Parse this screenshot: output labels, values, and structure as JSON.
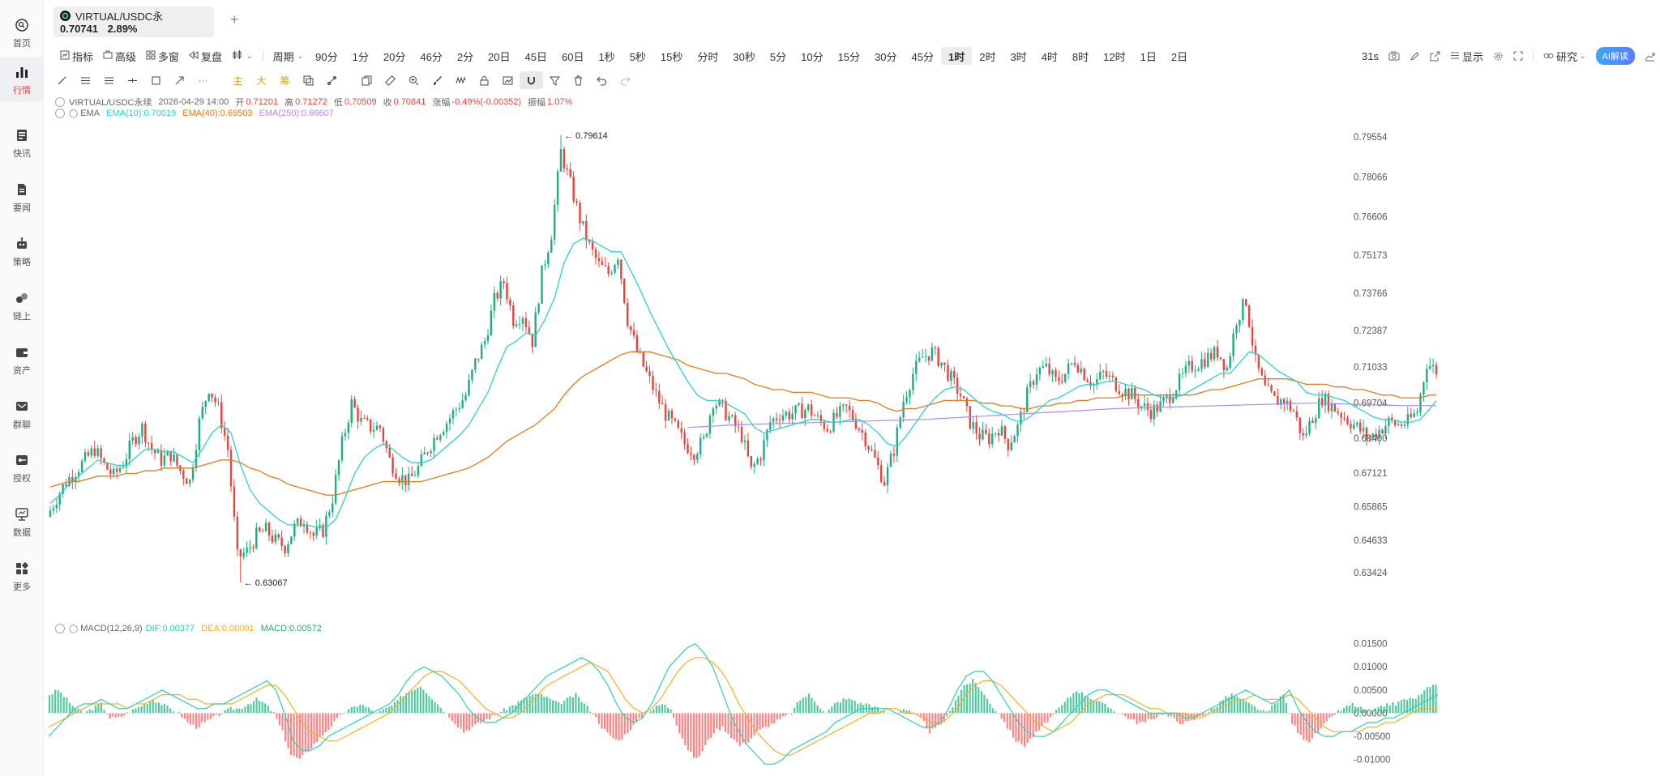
{
  "sidebar": {
    "items": [
      {
        "label": "首页",
        "icon": "home-icon"
      },
      {
        "label": "行情",
        "icon": "market-chart-icon",
        "active": true
      },
      {
        "label": "快讯",
        "icon": "news-flash-icon"
      },
      {
        "label": "要闻",
        "icon": "document-icon"
      },
      {
        "label": "策略",
        "icon": "robot-icon"
      },
      {
        "label": "链上",
        "icon": "chain-icon"
      },
      {
        "label": "资产",
        "icon": "wallet-icon"
      },
      {
        "label": "群聊",
        "icon": "chat-icon"
      },
      {
        "label": "授权",
        "icon": "key-icon"
      },
      {
        "label": "数据",
        "icon": "monitor-icon"
      },
      {
        "label": "更多",
        "icon": "apps-icon"
      }
    ]
  },
  "tab": {
    "symbol": "VIRTUAL/USDC永",
    "price": "0.70741",
    "change": "2.89%",
    "add": "+"
  },
  "toolbar": {
    "indicator": "指标",
    "advanced": "高级",
    "multi_window": "多窗",
    "replay": "复盘",
    "period": "周期",
    "periods": [
      "90分",
      "1分",
      "20分",
      "46分",
      "2分",
      "20日",
      "45日",
      "60日",
      "1秒",
      "5秒",
      "15秒",
      "分时",
      "30秒",
      "5分",
      "10分",
      "15分",
      "30分",
      "45分",
      "1时",
      "2时",
      "3时",
      "4时",
      "8时",
      "12时",
      "1日",
      "2日"
    ],
    "active_period": "1时",
    "countdown": "31s",
    "display": "显示",
    "research": "研究",
    "ai": "AI解读"
  },
  "drawbar": {
    "text_tools": [
      "主",
      "大",
      "筹"
    ]
  },
  "legend": {
    "symbol": "VIRTUAL/USDC永续",
    "time": "2026-04-29 14:00",
    "open_label": "开",
    "open": "0.71201",
    "high_label": "高",
    "high": "0.71272",
    "low_label": "低",
    "low": "0.70509",
    "close_label": "收",
    "close": "0.70841",
    "change_label": "涨幅",
    "change": "-0.49%(-0.00352)",
    "amp_label": "振幅",
    "amp": "1.07%",
    "ema_name": "EMA",
    "ema10": "EMA(10):0.70019",
    "ema40": "EMA(40):0.69503",
    "ema250": "EMA(250):0.69607",
    "macd_name": "MACD(12,26,9)",
    "dif": "DIF:0.00377",
    "dea": "DEA:0.00091",
    "macd": "MACD:0.00572"
  },
  "chart_data": [
    {
      "type": "candlestick",
      "title": "VIRTUAL/USDC永续",
      "ylim": [
        0.628,
        0.8
      ],
      "y_ticks": [
        "0.79554",
        "0.78066",
        "0.76606",
        "0.75173",
        "0.73766",
        "0.72387",
        "0.71033",
        "0.69704",
        "0.68400",
        "0.67121",
        "0.65865",
        "0.64633",
        "0.63424"
      ],
      "annotations": {
        "max": "0.79614",
        "min": "0.63067"
      },
      "close_path": [
        0.655,
        0.662,
        0.668,
        0.672,
        0.676,
        0.68,
        0.674,
        0.67,
        0.675,
        0.683,
        0.688,
        0.68,
        0.676,
        0.678,
        0.672,
        0.668,
        0.69,
        0.703,
        0.695,
        0.68,
        0.64,
        0.642,
        0.648,
        0.65,
        0.646,
        0.644,
        0.651,
        0.654,
        0.648,
        0.65,
        0.662,
        0.682,
        0.697,
        0.69,
        0.688,
        0.688,
        0.676,
        0.67,
        0.668,
        0.673,
        0.68,
        0.686,
        0.69,
        0.695,
        0.7,
        0.712,
        0.72,
        0.735,
        0.742,
        0.728,
        0.73,
        0.72,
        0.745,
        0.76,
        0.79,
        0.778,
        0.765,
        0.755,
        0.748,
        0.745,
        0.752,
        0.728,
        0.716,
        0.708,
        0.7,
        0.693,
        0.688,
        0.682,
        0.679,
        0.683,
        0.698,
        0.695,
        0.69,
        0.685,
        0.672,
        0.678,
        0.69,
        0.693,
        0.693,
        0.694,
        0.695,
        0.691,
        0.688,
        0.692,
        0.695,
        0.69,
        0.684,
        0.676,
        0.668,
        0.68,
        0.698,
        0.708,
        0.714,
        0.716,
        0.712,
        0.706,
        0.7,
        0.69,
        0.685,
        0.684,
        0.688,
        0.682,
        0.688,
        0.7,
        0.709,
        0.71,
        0.705,
        0.708,
        0.713,
        0.708,
        0.704,
        0.708,
        0.705,
        0.702,
        0.7,
        0.696,
        0.694,
        0.696,
        0.7,
        0.705,
        0.71,
        0.712,
        0.714,
        0.716,
        0.71,
        0.728,
        0.735,
        0.712,
        0.702,
        0.698,
        0.698,
        0.694,
        0.684,
        0.692,
        0.699,
        0.696,
        0.693,
        0.69,
        0.687,
        0.684,
        0.687,
        0.69,
        0.689,
        0.69,
        0.694,
        0.712,
        0.709
      ],
      "ema10": [
        0.66,
        0.663,
        0.667,
        0.67,
        0.673,
        0.676,
        0.675,
        0.674,
        0.674,
        0.677,
        0.68,
        0.68,
        0.679,
        0.679,
        0.677,
        0.675,
        0.68,
        0.686,
        0.689,
        0.686,
        0.674,
        0.665,
        0.66,
        0.657,
        0.654,
        0.652,
        0.652,
        0.652,
        0.651,
        0.651,
        0.654,
        0.662,
        0.671,
        0.677,
        0.68,
        0.682,
        0.68,
        0.677,
        0.675,
        0.675,
        0.676,
        0.679,
        0.682,
        0.685,
        0.689,
        0.695,
        0.701,
        0.71,
        0.718,
        0.72,
        0.723,
        0.722,
        0.728,
        0.736,
        0.749,
        0.756,
        0.758,
        0.757,
        0.755,
        0.753,
        0.753,
        0.746,
        0.739,
        0.731,
        0.724,
        0.717,
        0.711,
        0.705,
        0.7,
        0.698,
        0.698,
        0.697,
        0.695,
        0.693,
        0.688,
        0.686,
        0.687,
        0.688,
        0.689,
        0.69,
        0.691,
        0.691,
        0.69,
        0.69,
        0.691,
        0.691,
        0.689,
        0.686,
        0.682,
        0.681,
        0.685,
        0.69,
        0.695,
        0.699,
        0.702,
        0.703,
        0.702,
        0.699,
        0.696,
        0.694,
        0.693,
        0.691,
        0.69,
        0.692,
        0.695,
        0.698,
        0.699,
        0.701,
        0.703,
        0.704,
        0.704,
        0.705,
        0.705,
        0.704,
        0.703,
        0.702,
        0.7,
        0.699,
        0.699,
        0.7,
        0.702,
        0.704,
        0.706,
        0.708,
        0.708,
        0.712,
        0.716,
        0.715,
        0.712,
        0.709,
        0.707,
        0.705,
        0.701,
        0.7,
        0.7,
        0.699,
        0.698,
        0.696,
        0.694,
        0.692,
        0.691,
        0.691,
        0.69,
        0.69,
        0.691,
        0.695,
        0.698
      ],
      "ema40": [
        0.666,
        0.667,
        0.668,
        0.668,
        0.669,
        0.67,
        0.67,
        0.67,
        0.671,
        0.671,
        0.672,
        0.672,
        0.673,
        0.673,
        0.673,
        0.673,
        0.674,
        0.675,
        0.676,
        0.676,
        0.675,
        0.673,
        0.672,
        0.67,
        0.669,
        0.667,
        0.666,
        0.665,
        0.664,
        0.663,
        0.663,
        0.664,
        0.665,
        0.666,
        0.667,
        0.668,
        0.668,
        0.668,
        0.668,
        0.668,
        0.669,
        0.67,
        0.671,
        0.672,
        0.673,
        0.675,
        0.677,
        0.68,
        0.683,
        0.685,
        0.687,
        0.689,
        0.692,
        0.695,
        0.7,
        0.704,
        0.707,
        0.709,
        0.711,
        0.713,
        0.715,
        0.716,
        0.716,
        0.716,
        0.715,
        0.714,
        0.713,
        0.711,
        0.71,
        0.709,
        0.708,
        0.708,
        0.707,
        0.706,
        0.704,
        0.703,
        0.702,
        0.702,
        0.701,
        0.701,
        0.701,
        0.7,
        0.699,
        0.699,
        0.699,
        0.698,
        0.698,
        0.697,
        0.695,
        0.694,
        0.695,
        0.695,
        0.696,
        0.697,
        0.698,
        0.698,
        0.698,
        0.698,
        0.697,
        0.697,
        0.696,
        0.696,
        0.695,
        0.695,
        0.696,
        0.696,
        0.697,
        0.697,
        0.698,
        0.698,
        0.699,
        0.699,
        0.699,
        0.7,
        0.7,
        0.7,
        0.7,
        0.7,
        0.7,
        0.7,
        0.7,
        0.701,
        0.702,
        0.702,
        0.703,
        0.704,
        0.705,
        0.706,
        0.706,
        0.706,
        0.706,
        0.705,
        0.704,
        0.704,
        0.704,
        0.703,
        0.703,
        0.702,
        0.702,
        0.701,
        0.7,
        0.7,
        0.699,
        0.699,
        0.699,
        0.7,
        0.7
      ],
      "ema250_start_index": 67,
      "ema250": [
        0.688,
        0.6882,
        0.6884,
        0.6886,
        0.6888,
        0.689,
        0.6891,
        0.6892,
        0.6893,
        0.6894,
        0.6895,
        0.6896,
        0.6897,
        0.6898,
        0.6899,
        0.69,
        0.6901,
        0.6902,
        0.6903,
        0.6904,
        0.6905,
        0.6906,
        0.6907,
        0.6908,
        0.6909,
        0.691,
        0.6912,
        0.6914,
        0.6916,
        0.6918,
        0.692,
        0.6922,
        0.6924,
        0.6926,
        0.6928,
        0.693,
        0.6932,
        0.6934,
        0.6936,
        0.6938,
        0.694,
        0.6942,
        0.6944,
        0.6946,
        0.6948,
        0.695,
        0.6951,
        0.6952,
        0.6953,
        0.6954,
        0.6955,
        0.6956,
        0.6957,
        0.6958,
        0.6959,
        0.696,
        0.6961,
        0.6962,
        0.6963,
        0.6964,
        0.6965,
        0.6966,
        0.6967,
        0.6968,
        0.6969,
        0.697,
        0.697,
        0.6969,
        0.6968,
        0.6967,
        0.6966,
        0.6965,
        0.6964,
        0.6963,
        0.6962,
        0.6961,
        0.6961,
        0.6961,
        0.6961,
        0.6961,
        0.6961
      ]
    },
    {
      "type": "bar",
      "title": "MACD(12,26,9)",
      "ylim": [
        -0.0125,
        0.0165
      ],
      "y_ticks": [
        "0.01500",
        "0.01000",
        "0.00500",
        "0.00000",
        "-0.00500",
        "-0.01000"
      ],
      "histogram": [
        0.004,
        0.005,
        0.003,
        0.001,
        0.0,
        0.001,
        0.002,
        -0.001,
        -0.001,
        0.0,
        0.001,
        0.002,
        0.003,
        0.002,
        0.001,
        0.0,
        -0.002,
        -0.003,
        -0.002,
        -0.001,
        0.0,
        0.001,
        0.001,
        0.002,
        0.003,
        0.002,
        0.0,
        -0.004,
        -0.009,
        -0.01,
        -0.008,
        -0.006,
        -0.004,
        -0.002,
        0.0,
        0.001,
        0.002,
        0.001,
        0.0,
        0.001,
        0.002,
        0.004,
        0.005,
        0.006,
        0.004,
        0.002,
        0.0,
        -0.002,
        -0.004,
        -0.003,
        -0.002,
        -0.001,
        0.0,
        0.001,
        0.002,
        0.003,
        0.004,
        0.004,
        0.003,
        0.002,
        0.003,
        0.004,
        0.002,
        0.0,
        -0.003,
        -0.005,
        -0.006,
        -0.004,
        -0.002,
        0.0,
        0.001,
        0.002,
        0.001,
        -0.004,
        -0.008,
        -0.01,
        -0.007,
        -0.004,
        -0.003,
        -0.005,
        -0.007,
        -0.006,
        -0.004,
        -0.003,
        -0.002,
        -0.001,
        0.0,
        0.003,
        0.004,
        0.002,
        0.0,
        0.002,
        0.003,
        0.003,
        0.002,
        0.002,
        0.001,
        0.0,
        0.0,
        0.001,
        0.0,
        -0.001,
        -0.004,
        -0.003,
        -0.001,
        0.003,
        0.006,
        0.007,
        0.005,
        0.002,
        0.0,
        -0.003,
        -0.006,
        -0.007,
        -0.005,
        -0.003,
        -0.001,
        0.001,
        0.003,
        0.005,
        0.004,
        0.003,
        0.002,
        0.001,
        0.0,
        -0.001,
        -0.002,
        -0.002,
        -0.001,
        0.0,
        -0.001,
        -0.002,
        -0.002,
        -0.001,
        0.0,
        0.001,
        0.003,
        0.004,
        0.003,
        0.002,
        0.001,
        0.0,
        0.002,
        0.004,
        -0.002,
        -0.005,
        -0.006,
        -0.004,
        -0.002,
        0.0,
        0.001,
        0.002,
        0.001,
        0.0,
        0.001,
        0.002,
        0.002,
        0.003,
        0.003,
        0.004,
        0.006
      ],
      "dif": [
        -0.005,
        -0.003,
        -0.001,
        0.001,
        0.002,
        0.002,
        0.003,
        0.002,
        0.001,
        0.001,
        0.002,
        0.003,
        0.004,
        0.005,
        0.004,
        0.003,
        0.002,
        0.001,
        0.001,
        0.002,
        0.002,
        0.003,
        0.004,
        0.005,
        0.006,
        0.007,
        0.005,
        0.0,
        -0.006,
        -0.008,
        -0.008,
        -0.007,
        -0.005,
        -0.004,
        -0.003,
        -0.002,
        -0.001,
        0.0,
        0.001,
        0.002,
        0.004,
        0.007,
        0.009,
        0.01,
        0.009,
        0.008,
        0.006,
        0.004,
        0.001,
        -0.001,
        -0.002,
        -0.002,
        -0.001,
        0.0,
        0.002,
        0.004,
        0.006,
        0.008,
        0.009,
        0.01,
        0.011,
        0.012,
        0.011,
        0.009,
        0.006,
        0.002,
        -0.001,
        -0.002,
        -0.001,
        0.002,
        0.006,
        0.01,
        0.012,
        0.014,
        0.015,
        0.013,
        0.01,
        0.005,
        0.0,
        -0.004,
        -0.007,
        -0.009,
        -0.011,
        -0.011,
        -0.01,
        -0.008,
        -0.007,
        -0.006,
        -0.005,
        -0.004,
        -0.002,
        -0.001,
        0.0,
        0.001,
        0.001,
        0.001,
        0.001,
        0.0,
        -0.001,
        -0.002,
        -0.003,
        -0.003,
        -0.002,
        0.001,
        0.005,
        0.008,
        0.009,
        0.009,
        0.007,
        0.004,
        0.001,
        -0.002,
        -0.004,
        -0.005,
        -0.005,
        -0.004,
        -0.002,
        0.0,
        0.002,
        0.004,
        0.005,
        0.005,
        0.004,
        0.003,
        0.002,
        0.001,
        0.0,
        0.0,
        0.0,
        0.0,
        -0.001,
        -0.001,
        0.0,
        0.001,
        0.002,
        0.003,
        0.004,
        0.005,
        0.004,
        0.003,
        0.002,
        0.003,
        0.005,
        0.001,
        -0.002,
        -0.004,
        -0.005,
        -0.005,
        -0.004,
        -0.004,
        -0.003,
        -0.002,
        -0.002,
        -0.001,
        -0.001,
        0.0,
        0.001,
        0.002,
        0.003,
        0.004
      ],
      "dea": [
        -0.003,
        -0.002,
        -0.001,
        0.0,
        0.001,
        0.002,
        0.002,
        0.002,
        0.002,
        0.001,
        0.002,
        0.002,
        0.003,
        0.004,
        0.004,
        0.004,
        0.003,
        0.003,
        0.002,
        0.002,
        0.002,
        0.002,
        0.003,
        0.004,
        0.005,
        0.006,
        0.006,
        0.004,
        0.001,
        -0.002,
        -0.004,
        -0.005,
        -0.006,
        -0.006,
        -0.005,
        -0.004,
        -0.003,
        -0.002,
        -0.001,
        0.0,
        0.002,
        0.004,
        0.006,
        0.008,
        0.009,
        0.009,
        0.008,
        0.007,
        0.005,
        0.003,
        0.001,
        0.0,
        -0.001,
        -0.001,
        0.0,
        0.002,
        0.004,
        0.006,
        0.007,
        0.008,
        0.009,
        0.01,
        0.011,
        0.01,
        0.009,
        0.006,
        0.003,
        0.001,
        0.0,
        0.001,
        0.003,
        0.006,
        0.009,
        0.011,
        0.012,
        0.012,
        0.011,
        0.009,
        0.006,
        0.002,
        -0.001,
        -0.004,
        -0.006,
        -0.008,
        -0.009,
        -0.009,
        -0.008,
        -0.007,
        -0.006,
        -0.005,
        -0.004,
        -0.003,
        -0.002,
        -0.001,
        0.0,
        0.0,
        0.001,
        0.001,
        0.0,
        0.0,
        -0.001,
        -0.002,
        -0.002,
        -0.001,
        0.001,
        0.004,
        0.006,
        0.007,
        0.007,
        0.006,
        0.004,
        0.002,
        0.0,
        -0.002,
        -0.003,
        -0.004,
        -0.003,
        -0.002,
        0.0,
        0.002,
        0.003,
        0.004,
        0.004,
        0.004,
        0.003,
        0.002,
        0.001,
        0.001,
        0.0,
        0.0,
        0.0,
        -0.001,
        -0.001,
        0.0,
        0.001,
        0.002,
        0.003,
        0.003,
        0.004,
        0.003,
        0.003,
        0.003,
        0.004,
        0.003,
        0.001,
        -0.001,
        -0.003,
        -0.004,
        -0.004,
        -0.004,
        -0.004,
        -0.003,
        -0.003,
        -0.002,
        -0.002,
        -0.001,
        0.0,
        0.001,
        0.001,
        0.001
      ]
    }
  ]
}
